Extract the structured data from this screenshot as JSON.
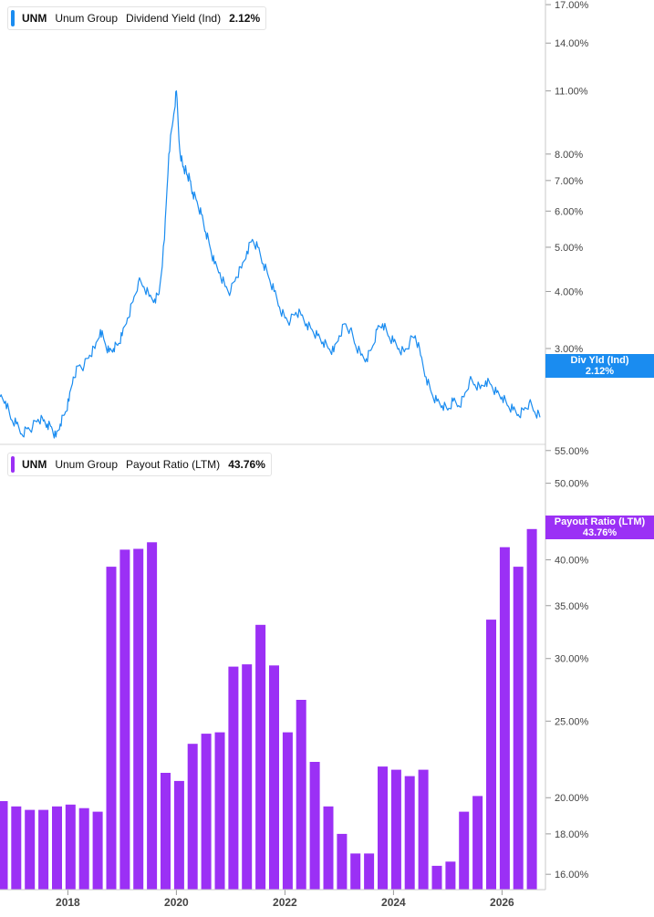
{
  "top_panel": {
    "ticker": "UNM",
    "company": "Unum Group",
    "metric": "Dividend Yield (Ind)",
    "value": "2.12%",
    "tag_label": "Div Yld (Ind)",
    "tag_value": "2.12%"
  },
  "bottom_panel": {
    "ticker": "UNM",
    "company": "Unum Group",
    "metric": "Payout Ratio (LTM)",
    "value": "43.76%",
    "tag_label": "Payout Ratio (LTM)",
    "tag_value": "43.76%"
  },
  "colors": {
    "line": "#1a8cf0",
    "bar": "#9b30f5",
    "grid": "#e6e6e6",
    "axis_text": "#444444"
  },
  "chart_data": [
    {
      "type": "line",
      "scale": "log",
      "title": "Dividend Yield (Ind)",
      "series": [
        {
          "name": "Dividend Yield (Ind)"
        }
      ],
      "y_ticks": [
        "17.00%",
        "14.00%",
        "11.00%",
        "8.00%",
        "7.00%",
        "6.00%",
        "5.00%",
        "4.00%",
        "3.00%"
      ],
      "y_tick_values": [
        17,
        14,
        11,
        8,
        7,
        6,
        5,
        4,
        3
      ],
      "ylim": [
        1.85,
        17.4
      ],
      "xlim": [
        2016.75,
        2026.8
      ],
      "x": [
        2016.75,
        2016.85,
        2016.95,
        2017.05,
        2017.15,
        2017.25,
        2017.35,
        2017.45,
        2017.55,
        2017.62,
        2017.7,
        2017.78,
        2017.86,
        2017.94,
        2018.02,
        2018.1,
        2018.2,
        2018.3,
        2018.4,
        2018.5,
        2018.6,
        2018.68,
        2018.76,
        2018.84,
        2018.92,
        2019.0,
        2019.1,
        2019.2,
        2019.3,
        2019.4,
        2019.5,
        2019.6,
        2019.68,
        2019.78,
        2019.86,
        2019.94,
        2020.0,
        2020.06,
        2020.12,
        2020.16,
        2020.2,
        2020.25,
        2020.3,
        2020.38,
        2020.46,
        2020.54,
        2020.62,
        2020.7,
        2020.8,
        2020.9,
        2021.0,
        2021.1,
        2021.2,
        2021.3,
        2021.4,
        2021.5,
        2021.6,
        2021.7,
        2021.8,
        2021.9,
        2022.0,
        2022.1,
        2022.2,
        2022.3,
        2022.4,
        2022.5,
        2022.6,
        2022.7,
        2022.8,
        2022.9,
        2023.0,
        2023.1,
        2023.2,
        2023.3,
        2023.4,
        2023.5,
        2023.6,
        2023.7,
        2023.8,
        2023.9,
        2024.0,
        2024.1,
        2024.2,
        2024.3,
        2024.4,
        2024.5,
        2024.6,
        2024.7,
        2024.8,
        2024.9,
        2025.0,
        2025.1,
        2025.2,
        2025.3,
        2025.4,
        2025.5,
        2025.6,
        2025.7,
        2025.8,
        2025.9,
        2026.0,
        2026.1,
        2026.2,
        2026.3,
        2026.4,
        2026.5,
        2026.6,
        2026.7
      ],
      "y": [
        2.35,
        2.3,
        2.1,
        2.05,
        1.95,
        2.0,
        2.02,
        2.1,
        2.08,
        2.05,
        2.02,
        1.92,
        2.05,
        2.15,
        2.3,
        2.6,
        2.75,
        2.75,
        2.9,
        3.0,
        3.3,
        3.1,
        2.95,
        3.0,
        3.05,
        3.2,
        3.5,
        3.8,
        4.2,
        4.1,
        3.9,
        3.85,
        3.95,
        5.2,
        8.0,
        9.5,
        11.0,
        8.2,
        7.5,
        7.4,
        7.2,
        7.0,
        6.6,
        6.3,
        5.9,
        5.4,
        5.0,
        4.6,
        4.4,
        4.1,
        4.0,
        4.3,
        4.5,
        4.9,
        5.2,
        5.0,
        4.6,
        4.3,
        4.0,
        3.7,
        3.5,
        3.45,
        3.6,
        3.55,
        3.4,
        3.3,
        3.2,
        3.1,
        3.0,
        2.95,
        3.2,
        3.4,
        3.3,
        3.05,
        2.9,
        2.85,
        3.0,
        3.3,
        3.4,
        3.2,
        3.1,
        3.0,
        2.95,
        3.1,
        3.2,
        2.9,
        2.6,
        2.4,
        2.3,
        2.25,
        2.2,
        2.3,
        2.25,
        2.35,
        2.55,
        2.5,
        2.45,
        2.55,
        2.5,
        2.4,
        2.35,
        2.25,
        2.2,
        2.15,
        2.2,
        2.28,
        2.18,
        2.12
      ]
    },
    {
      "type": "bar",
      "scale": "log",
      "title": "Payout Ratio (LTM)",
      "series": [
        {
          "name": "Payout Ratio (LTM)"
        }
      ],
      "y_ticks": [
        "55.00%",
        "50.00%",
        "45.00%",
        "40.00%",
        "35.00%",
        "30.00%",
        "25.00%",
        "20.00%",
        "18.00%",
        "16.00%"
      ],
      "y_tick_values": [
        55,
        50,
        45,
        40,
        35,
        30,
        25,
        20,
        18,
        16
      ],
      "ylim": [
        15.3,
        56
      ],
      "x_ticks": [
        "2018",
        "2020",
        "2022",
        "2024",
        "2026"
      ],
      "x_tick_values": [
        2018,
        2020,
        2022,
        2024,
        2026
      ],
      "x": [
        2016.8,
        2017.05,
        2017.3,
        2017.55,
        2017.8,
        2018.05,
        2018.3,
        2018.55,
        2018.8,
        2019.05,
        2019.3,
        2019.55,
        2019.8,
        2020.05,
        2020.3,
        2020.55,
        2020.8,
        2021.05,
        2021.3,
        2021.55,
        2021.8,
        2022.05,
        2022.3,
        2022.55,
        2022.8,
        2023.05,
        2023.3,
        2023.55,
        2023.8,
        2024.05,
        2024.3,
        2024.55,
        2024.8,
        2025.05,
        2025.3,
        2025.55,
        2025.8,
        2026.05,
        2026.3,
        2026.55
      ],
      "values": [
        19.8,
        19.5,
        19.3,
        19.3,
        19.5,
        19.6,
        19.4,
        19.2,
        39.2,
        41.2,
        41.3,
        42.1,
        21.5,
        21.0,
        23.4,
        24.1,
        24.2,
        29.3,
        29.5,
        33.1,
        29.4,
        24.2,
        26.6,
        22.2,
        19.5,
        18.0,
        17.0,
        17.0,
        21.9,
        21.7,
        21.3,
        21.7,
        16.4,
        16.6,
        19.2,
        20.1,
        33.6,
        41.5,
        39.2,
        43.76
      ],
      "bar_width": 0.185
    }
  ]
}
